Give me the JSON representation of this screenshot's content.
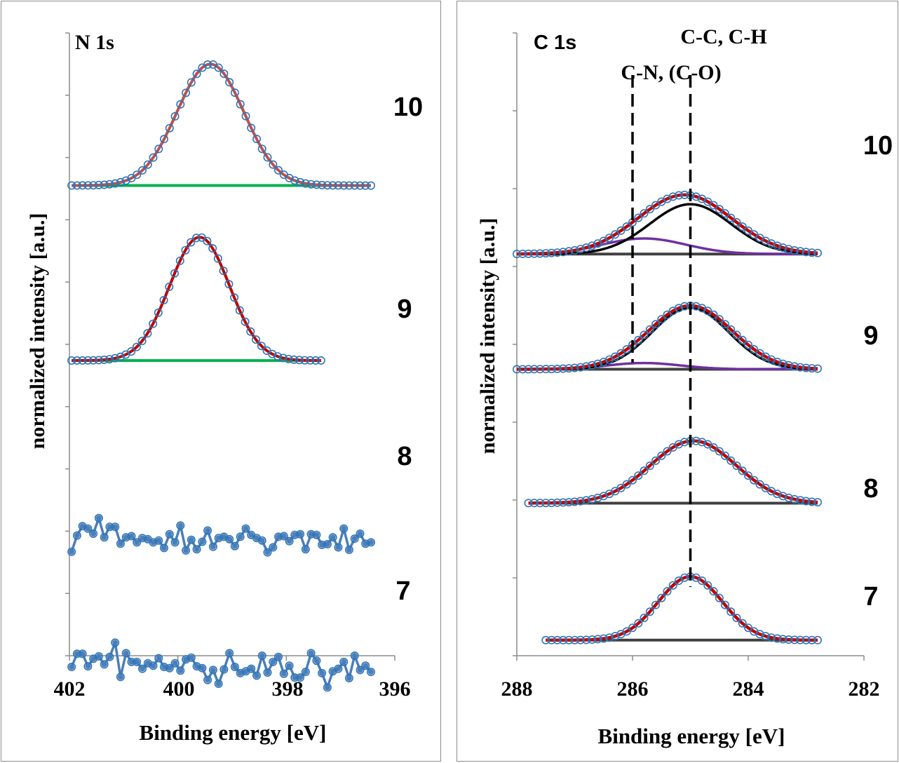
{
  "colors": {
    "marker": "#2e75b6",
    "connector": "#4a7ebb",
    "fit": "#c00000",
    "fit_n10": "#c0504d",
    "baseline_n": "#00b050",
    "baseline_c": "#404040",
    "comp_cc": "#000000",
    "comp_cn": "#7030a0"
  },
  "chart_data": [
    {
      "type": "line",
      "panel_label": "N 1s",
      "xlabel": "Binding energy [eV]",
      "ylabel": "normalized intensity [a.u.]",
      "xlim": [
        402,
        396
      ],
      "x_reversed": true,
      "xticks": [
        "402",
        "400",
        "398",
        "396"
      ],
      "ylim": [
        0,
        10
      ],
      "series": [
        {
          "name": "10",
          "offset": 7.55,
          "peak": {
            "center": 399.4,
            "height": 1.95,
            "fwhm": 1.45
          },
          "xrange": [
            401.96,
            396.44
          ]
        },
        {
          "name": "9",
          "offset": 4.74,
          "peak": {
            "center": 399.6,
            "height": 1.98,
            "fwhm": 1.3
          },
          "xrange": [
            401.96,
            397.36
          ]
        },
        {
          "name": "8",
          "offset": 1.85,
          "noise": [
            -0.18,
            0.08,
            0.23,
            0.19,
            0.11,
            0.36,
            0.05,
            0.22,
            0.22,
            -0.05,
            0.05,
            0.07,
            -0.03,
            0.04,
            0.02,
            -0.03,
            0.0,
            -0.12,
            0.1,
            -0.03,
            0.24,
            -0.16,
            0.01,
            -0.14,
            -0.02,
            0.16,
            -0.1,
            0.04,
            0.06,
            0.02,
            -0.09,
            0.06,
            0.19,
            0.09,
            0.04,
            0.0,
            -0.19,
            -0.11,
            0.06,
            0.07,
            -0.01,
            0.09,
            0.1,
            -0.14,
            0.1,
            0.09,
            -0.07,
            -0.06,
            0.05,
            -0.11,
            0.19,
            -0.15,
            0.03,
            0.11,
            -0.05,
            -0.03
          ]
        },
        {
          "name": "7",
          "offset": -0.2,
          "noise": [
            0.02,
            0.23,
            0.23,
            0.03,
            0.15,
            0.19,
            0.06,
            0.18,
            0.41,
            -0.14,
            0.24,
            0.1,
            0.1,
            -0.01,
            0.08,
            0.04,
            0.16,
            0.02,
            0.0,
            0.08,
            -0.04,
            0.14,
            0.17,
            0.03,
            0.0,
            -0.19,
            -0.03,
            -0.25,
            -0.02,
            0.24,
            0.02,
            -0.08,
            -0.05,
            -0.01,
            -0.12,
            0.2,
            -0.07,
            0.1,
            0.18,
            -0.09,
            0.04,
            -0.15,
            -0.15,
            -0.06,
            0.24,
            0.12,
            -0.08,
            -0.31,
            -0.05,
            -0.01,
            0.1,
            -0.16,
            0.2,
            -0.03,
            0.04,
            -0.06
          ]
        }
      ]
    },
    {
      "type": "line",
      "panel_label": "C 1s",
      "xlabel": "Binding energy [eV]",
      "ylabel": "normalized intensity [a.u.]",
      "xlim": [
        288,
        282
      ],
      "x_reversed": true,
      "xticks": [
        "288",
        "286",
        "284",
        "282"
      ],
      "ylim": [
        0,
        10
      ],
      "annotations": [
        {
          "text": "C-C, C-H",
          "x": 285.0
        },
        {
          "text": "C-N, (C-O)",
          "x": 286.0
        }
      ],
      "series": [
        {
          "name": "10",
          "offset": 6.45,
          "peak": {
            "center": 285.1,
            "height": 0.95,
            "fwhm": 1.9
          },
          "cc": {
            "center": 285.0,
            "height": 0.8,
            "fwhm": 1.65
          },
          "cn": {
            "center": 285.8,
            "height": 0.25,
            "fwhm": 1.7
          },
          "xrange": [
            288.0,
            282.8
          ]
        },
        {
          "name": "9",
          "offset": 4.6,
          "peak": {
            "center": 285.0,
            "height": 1.02,
            "fwhm": 1.7
          },
          "cc": {
            "center": 285.0,
            "height": 0.99,
            "fwhm": 1.55
          },
          "cn": {
            "center": 285.8,
            "height": 0.1,
            "fwhm": 1.5
          },
          "xrange": [
            288.0,
            282.8
          ]
        },
        {
          "name": "8",
          "offset": 2.45,
          "peak": {
            "center": 284.95,
            "height": 1.0,
            "fwhm": 1.75
          },
          "xrange": [
            287.8,
            282.8
          ]
        },
        {
          "name": "7",
          "offset": 0.25,
          "peak": {
            "center": 285.0,
            "height": 1.02,
            "fwhm": 1.3
          },
          "xrange": [
            287.5,
            282.8
          ]
        }
      ]
    }
  ]
}
